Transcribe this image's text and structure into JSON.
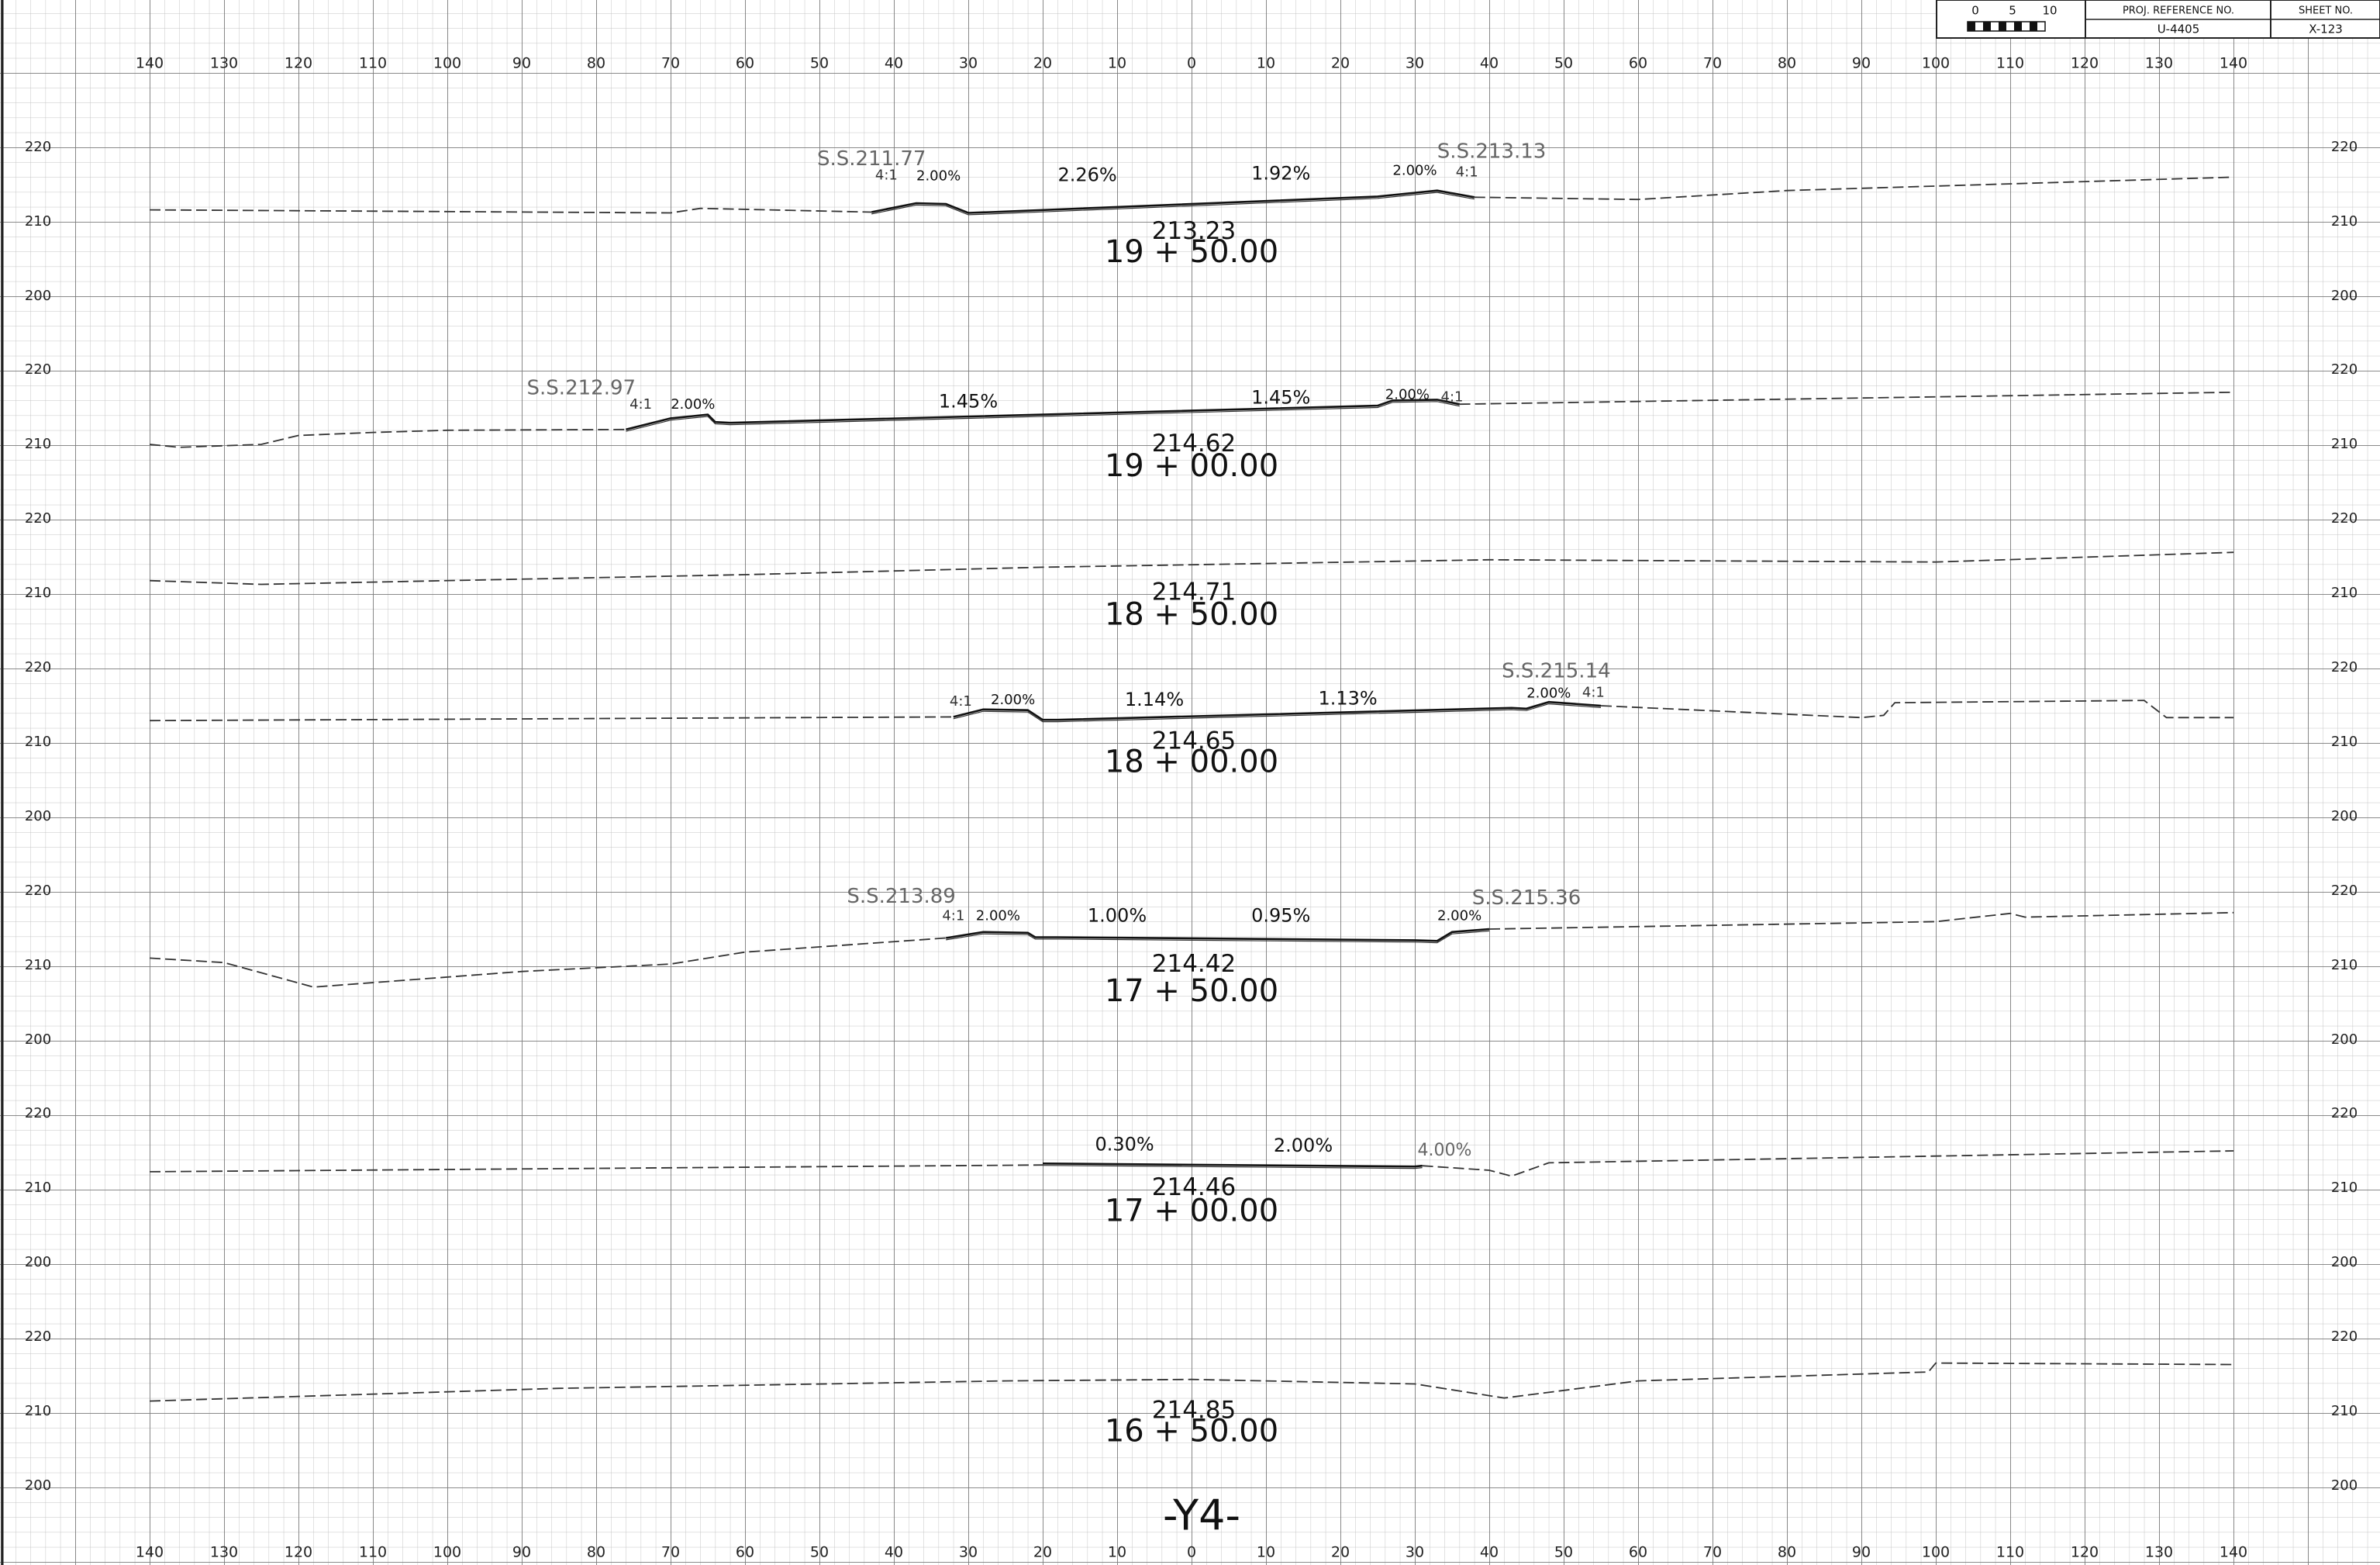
{
  "header": {
    "scale_labels": [
      "0",
      "5",
      "10"
    ],
    "proj_ref_label": "PROJ. REFERENCE NO.",
    "proj_ref": "U-4405",
    "sheet_label": "SHEET NO.",
    "sheet": "X-123"
  },
  "offset_labels": [
    140,
    130,
    120,
    110,
    100,
    90,
    80,
    70,
    60,
    50,
    40,
    30,
    20,
    10,
    0,
    10,
    20,
    30,
    40,
    50,
    60,
    70,
    80,
    90,
    100,
    110,
    120,
    130,
    140
  ],
  "sections": [
    {
      "elevation_labels": [
        220,
        210,
        200
      ],
      "elevation": "213.23",
      "station": "19 + 50.00",
      "labels": [
        "S.S.211.77",
        "4:1",
        "2.00%",
        "2.26%",
        "1.92%",
        "2.00%",
        "S.S.213.13",
        "4:1"
      ]
    },
    {
      "elevation_labels": [
        220,
        210
      ],
      "elevation": "214.62",
      "station": "19 + 00.00",
      "labels": [
        "S.S.212.97",
        "4:1",
        "2.00%",
        "1.45%",
        "1.45%",
        "2.00%",
        "4:1"
      ]
    },
    {
      "elevation_labels": [
        220,
        210
      ],
      "elevation": "214.71",
      "station": "18 + 50.00",
      "labels": []
    },
    {
      "elevation_labels": [
        220,
        210,
        200
      ],
      "elevation": "214.65",
      "station": "18 + 00.00",
      "labels": [
        "4:1",
        "2.00%",
        "1.14%",
        "1.13%",
        "S.S.215.14",
        "2.00%",
        "4:1"
      ]
    },
    {
      "elevation_labels": [
        220,
        210,
        200
      ],
      "elevation": "214.42",
      "station": "17 + 50.00",
      "labels": [
        "S.S.213.89",
        "4:1",
        "2.00%",
        "1.00%",
        "0.95%",
        "2.00%",
        "S.S.215.36"
      ]
    },
    {
      "elevation_labels": [
        220,
        210,
        200
      ],
      "elevation": "214.46",
      "station": "17 + 00.00",
      "labels": [
        "0.30%",
        "2.00%",
        "4.00%"
      ]
    },
    {
      "elevation_labels": [
        220,
        210,
        200
      ],
      "elevation": "214.85",
      "station": "16 + 50.00",
      "labels": []
    }
  ],
  "title": "-Y4-"
}
